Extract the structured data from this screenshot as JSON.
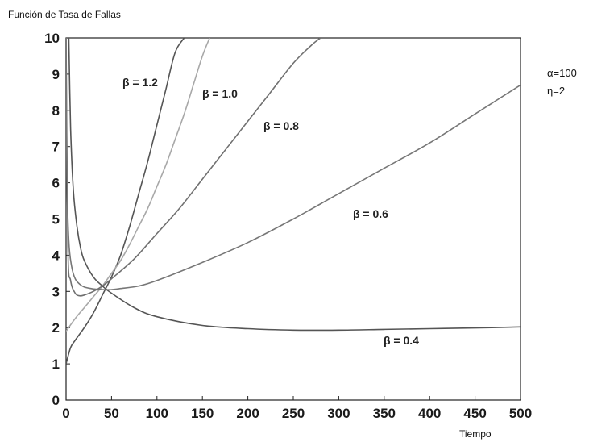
{
  "chart_data": {
    "type": "line",
    "title": "Función de  Tasa de Fallas",
    "xlabel": "Tiempo",
    "ylabel": "",
    "xlim": [
      0,
      500
    ],
    "ylim": [
      0,
      10
    ],
    "x_ticks": [
      0,
      50,
      100,
      150,
      200,
      250,
      300,
      350,
      400,
      450,
      500
    ],
    "y_ticks": [
      0,
      1,
      2,
      3,
      4,
      5,
      6,
      7,
      8,
      9,
      10
    ],
    "grid": false,
    "params": [
      "α=100",
      "η=2"
    ],
    "series": [
      {
        "name": "β = 1.2",
        "color": "#555555",
        "x": [
          0,
          5,
          10,
          20,
          30,
          40,
          50,
          60,
          70,
          80,
          90,
          100,
          110,
          120,
          130
        ],
        "y": [
          1.0,
          1.45,
          1.65,
          2.0,
          2.4,
          2.9,
          3.4,
          4.0,
          4.8,
          5.7,
          6.6,
          7.6,
          8.6,
          9.6,
          10.0
        ]
      },
      {
        "name": "β = 1.0",
        "color": "#a8a8a8",
        "x": [
          0,
          10,
          20,
          30,
          40,
          50,
          60,
          70,
          80,
          90,
          100,
          110,
          120,
          130,
          140,
          150,
          158
        ],
        "y": [
          1.9,
          2.25,
          2.55,
          2.85,
          3.15,
          3.5,
          3.85,
          4.3,
          4.8,
          5.3,
          5.9,
          6.5,
          7.2,
          7.9,
          8.7,
          9.5,
          10.0
        ]
      },
      {
        "name": "β = 0.8",
        "color": "#707070",
        "x": [
          0,
          2,
          5,
          10,
          15,
          20,
          30,
          40,
          50,
          75,
          100,
          125,
          150,
          175,
          200,
          225,
          250,
          270,
          280
        ],
        "y": [
          10.0,
          4.2,
          3.3,
          2.95,
          2.88,
          2.9,
          3.0,
          3.15,
          3.35,
          3.9,
          4.6,
          5.3,
          6.1,
          6.9,
          7.7,
          8.5,
          9.3,
          9.8,
          10.0
        ]
      },
      {
        "name": "β = 0.6",
        "color": "#777777",
        "x": [
          0,
          1,
          3,
          6,
          10,
          15,
          20,
          30,
          40,
          50,
          60,
          80,
          100,
          150,
          200,
          250,
          300,
          350,
          400,
          450,
          500
        ],
        "y": [
          10.0,
          6.2,
          4.4,
          3.7,
          3.35,
          3.2,
          3.12,
          3.07,
          3.05,
          3.05,
          3.08,
          3.15,
          3.3,
          3.8,
          4.35,
          5.0,
          5.7,
          6.4,
          7.1,
          7.9,
          8.7
        ]
      },
      {
        "name": "β = 0.4",
        "color": "#555555",
        "x": [
          3,
          5,
          8,
          12,
          16,
          20,
          30,
          40,
          50,
          75,
          100,
          150,
          200,
          250,
          300,
          350,
          400,
          450,
          500
        ],
        "y": [
          10.0,
          7.5,
          5.8,
          4.8,
          4.2,
          3.85,
          3.4,
          3.15,
          2.95,
          2.55,
          2.3,
          2.06,
          1.97,
          1.93,
          1.93,
          1.95,
          1.97,
          1.99,
          2.02
        ]
      }
    ]
  }
}
